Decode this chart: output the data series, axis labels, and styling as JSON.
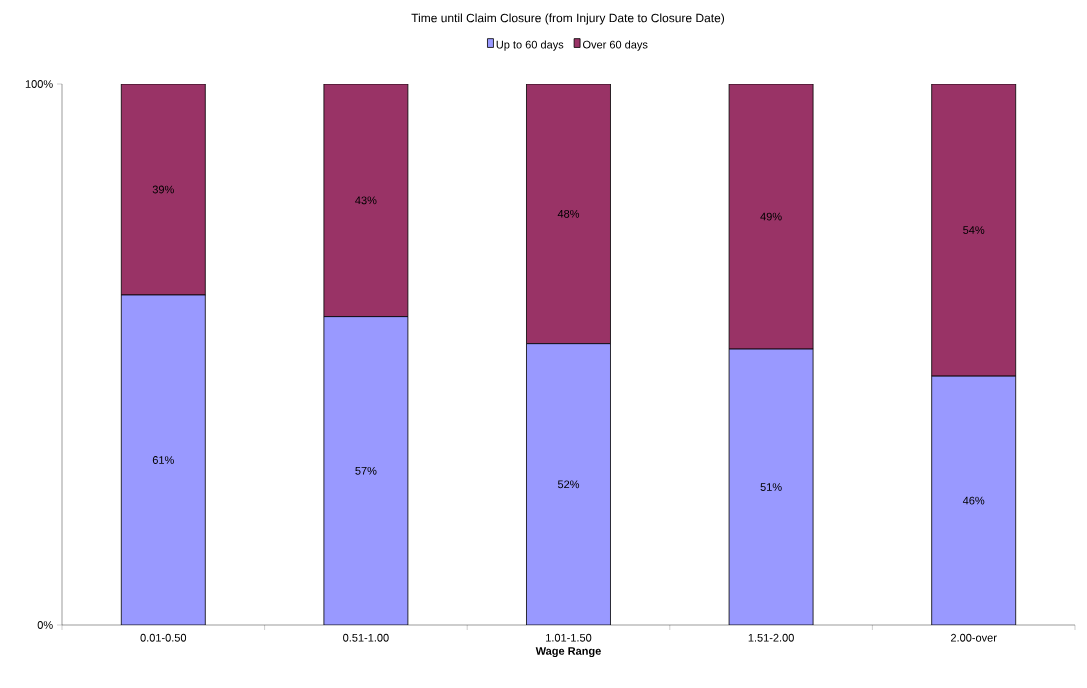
{
  "chart_data": {
    "type": "bar",
    "stacked": true,
    "title": "Time until Claim Closure (from Injury Date to Closure Date)",
    "xlabel": "Wage Range",
    "categories": [
      "0.01-0.50",
      "0.51-1.00",
      "1.01-1.50",
      "1.51-2.00",
      "2.00-over"
    ],
    "series": [
      {
        "name": "Up to 60 days",
        "color": "#9999ff",
        "values": [
          61,
          57,
          52,
          51,
          46
        ],
        "value_labels": [
          "61%",
          "57%",
          "52%",
          "51%",
          "46%"
        ]
      },
      {
        "name": "Over 60 days",
        "color": "#993366",
        "values": [
          39,
          43,
          48,
          49,
          54
        ],
        "value_labels": [
          "39%",
          "43%",
          "48%",
          "49%",
          "54%"
        ]
      }
    ],
    "ylim": [
      0,
      100
    ],
    "yticks": [
      {
        "value": 0,
        "label": "0%"
      },
      {
        "value": 100,
        "label": "100%"
      }
    ],
    "grid": false,
    "legend": "top"
  }
}
